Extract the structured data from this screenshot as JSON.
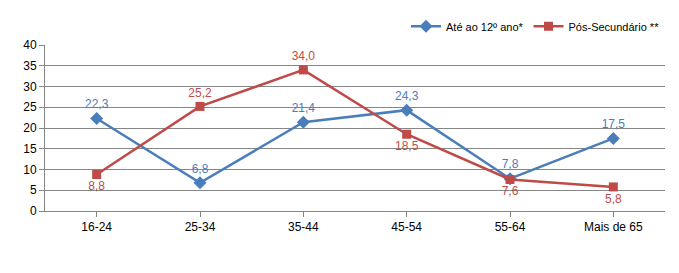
{
  "chart_data": {
    "type": "line",
    "categories": [
      "16-24",
      "25-34",
      "35-44",
      "45-54",
      "55-64",
      "Mais de 65"
    ],
    "series": [
      {
        "name": "Até ao 12º ano*",
        "color": "#4a7ebb",
        "marker": "diamond",
        "values": [
          22.3,
          6.8,
          21.4,
          24.3,
          7.8,
          17.5
        ],
        "value_labels": [
          "22,3",
          "6,8",
          "21,4",
          "24,3",
          "7,8",
          "17,5"
        ]
      },
      {
        "name": "Pós-Secundário **",
        "color": "#be4b48",
        "marker": "square",
        "values": [
          8.8,
          25.2,
          34.0,
          18.5,
          7.6,
          5.8
        ],
        "value_labels": [
          "8,8",
          "25,2",
          "34,0",
          "18,5",
          "7,6",
          "5,8"
        ]
      }
    ],
    "ylim": [
      0,
      40
    ],
    "yticks": [
      0,
      5,
      10,
      15,
      20,
      25,
      30,
      35,
      40
    ],
    "grid": true,
    "legend": "top-right",
    "data_labels": true
  }
}
